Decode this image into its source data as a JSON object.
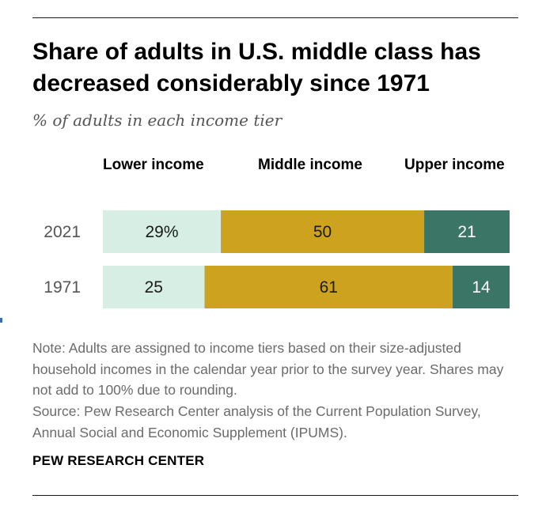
{
  "title": "Share of adults in U.S. middle class has decreased considerably since 1971",
  "subtitle": "% of adults in each income tier",
  "note": "Note: Adults are assigned to income tiers based on their size-adjusted household incomes in the calendar year prior to the survey year. Shares may not add to 100% due to rounding.",
  "source": "Source: Pew Research Center analysis of the Current Population Survey, Annual Social and Economic Supplement (IPUMS).",
  "organization": "PEW RESEARCH CENTER",
  "chart_data": {
    "type": "bar",
    "orientation": "horizontal-stacked",
    "categories": [
      "2021",
      "1971"
    ],
    "series": [
      {
        "name": "Lower income",
        "values": [
          29,
          25
        ],
        "labels": [
          "29%",
          "25"
        ],
        "color": "#d6eee3",
        "label_color": "#1a1a1a"
      },
      {
        "name": "Middle income",
        "values": [
          50,
          61
        ],
        "labels": [
          "50",
          "61"
        ],
        "color": "#cda21f",
        "label_color": "#1a1a1a"
      },
      {
        "name": "Upper income",
        "values": [
          21,
          14
        ],
        "labels": [
          "21",
          "14"
        ],
        "color": "#3b7565",
        "label_color": "#ffffff"
      }
    ],
    "xlim": [
      0,
      100
    ],
    "legend": "top",
    "grid": false,
    "xlabel": "",
    "ylabel": ""
  }
}
